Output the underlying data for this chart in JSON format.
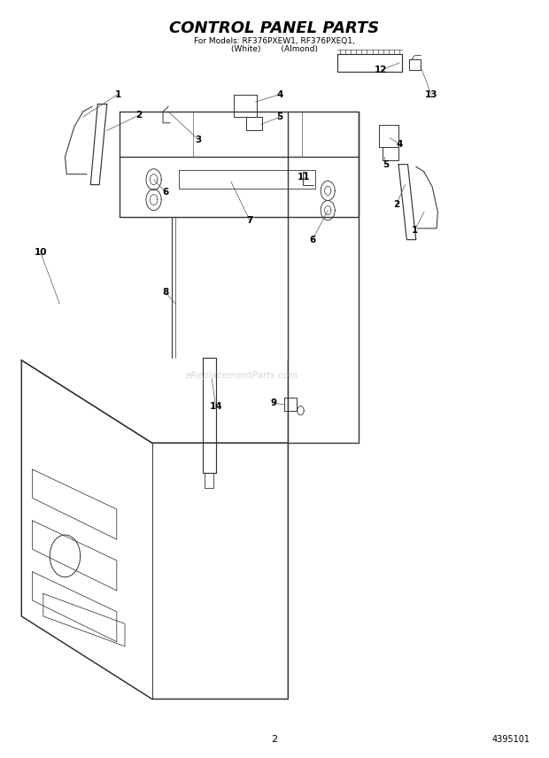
{
  "title": "CONTROL PANEL PARTS",
  "subtitle1": "For Models: RF376PXEW1, RF376PXEQ1,",
  "subtitle2": "(White)        (Almond)",
  "page_number": "2",
  "doc_number": "4395101",
  "bg_color": "#ffffff",
  "line_color": "#333333",
  "text_color": "#000000",
  "title_fontsize": 13,
  "subtitle_fontsize": 6.5,
  "label_fontsize": 7.5,
  "watermark": "eReplacementParts.com"
}
